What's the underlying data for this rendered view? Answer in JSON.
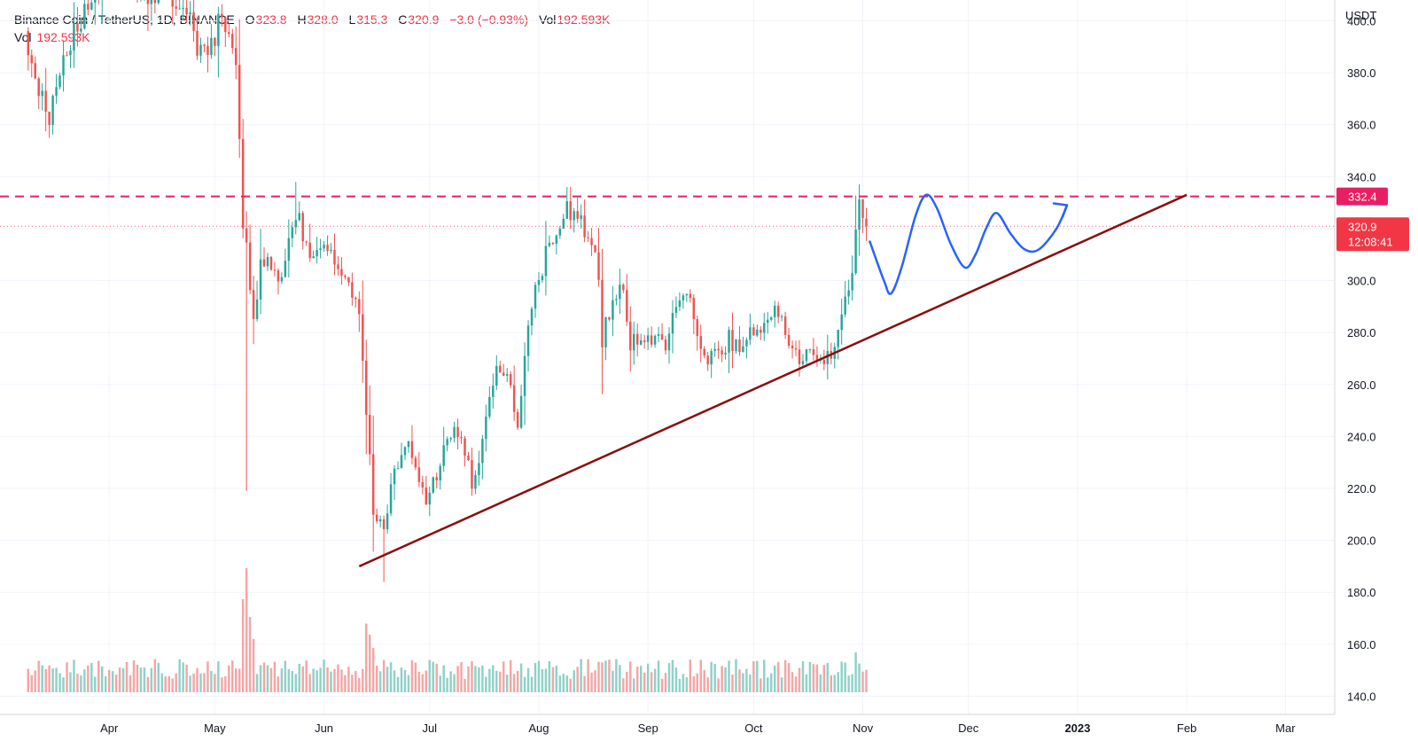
{
  "header": {
    "symbol": "Binance Coin / TetherUS, 1D, BINANCE",
    "o_label": "O",
    "o_value": "323.8",
    "h_label": "H",
    "h_value": "328.0",
    "l_label": "L",
    "l_value": "315.3",
    "c_label": "C",
    "c_value": "320.9",
    "change": "−3.0 (−0.93%)",
    "vol_label": "Vol",
    "vol_value": "192.593K",
    "vol_row_label": "Vol",
    "vol_row_value": "192.593K"
  },
  "colors": {
    "up": "#26a69a",
    "down": "#ef5350",
    "vol_up": "#8fd1c8",
    "vol_down": "#f5a5a5",
    "resistance": "#e91e63",
    "trendline": "#880e0e",
    "projection": "#2962ff",
    "last_price": "#f23645",
    "grid": "#f0f3fa",
    "axis_text": "#131722"
  },
  "chart_data": {
    "type": "candlestick",
    "symbol": "BNBUSDT",
    "y_axis": {
      "currency": "USDT",
      "ylim": [
        133,
        408
      ],
      "ticks": [
        140.0,
        160.0,
        180.0,
        200.0,
        220.0,
        240.0,
        260.0,
        280.0,
        300.0,
        320.0,
        340.0,
        360.0,
        380.0,
        400.0
      ],
      "tick_labels": [
        "140.0",
        "160.0",
        "180.0",
        "200.0",
        "220.0",
        "240.0",
        "260.0",
        "280.0",
        "300.0",
        "320.0",
        "340.0",
        "360.0",
        "380.0",
        "400.0"
      ]
    },
    "x_axis": {
      "start": "2022-03-01",
      "end": "2023-03-15",
      "ticks": [
        {
          "date": "2022-04-01",
          "label": "Apr",
          "bold": false
        },
        {
          "date": "2022-05-01",
          "label": "May",
          "bold": false
        },
        {
          "date": "2022-06-01",
          "label": "Jun",
          "bold": false
        },
        {
          "date": "2022-07-01",
          "label": "Jul",
          "bold": false
        },
        {
          "date": "2022-08-01",
          "label": "Aug",
          "bold": false
        },
        {
          "date": "2022-09-01",
          "label": "Sep",
          "bold": false
        },
        {
          "date": "2022-10-01",
          "label": "Oct",
          "bold": false
        },
        {
          "date": "2022-11-01",
          "label": "Nov",
          "bold": false
        },
        {
          "date": "2022-12-01",
          "label": "Dec",
          "bold": false
        },
        {
          "date": "2023-01-01",
          "label": "2023",
          "bold": true
        },
        {
          "date": "2023-02-01",
          "label": "Feb",
          "bold": false
        },
        {
          "date": "2023-03-01",
          "label": "Mar",
          "bold": false
        }
      ]
    },
    "candles_start": "2022-03-09",
    "anchors": [
      [
        "2022-03-09",
        392
      ],
      [
        "2022-03-12",
        372
      ],
      [
        "2022-03-15",
        362
      ],
      [
        "2022-03-18",
        378
      ],
      [
        "2022-03-22",
        395
      ],
      [
        "2022-03-25",
        404
      ],
      [
        "2022-03-28",
        412
      ],
      [
        "2022-04-02",
        428
      ],
      [
        "2022-04-06",
        422
      ],
      [
        "2022-04-10",
        410
      ],
      [
        "2022-04-14",
        412
      ],
      [
        "2022-04-18",
        410
      ],
      [
        "2022-04-22",
        404
      ],
      [
        "2022-04-26",
        392
      ],
      [
        "2022-04-29",
        384
      ],
      [
        "2022-05-02",
        398
      ],
      [
        "2022-05-05",
        400
      ],
      [
        "2022-05-07",
        382
      ],
      [
        "2022-05-09",
        318
      ],
      [
        "2022-05-10",
        318
      ],
      [
        "2022-05-11",
        295
      ],
      [
        "2022-05-12",
        286
      ],
      [
        "2022-05-14",
        305
      ],
      [
        "2022-05-17",
        308
      ],
      [
        "2022-05-20",
        298
      ],
      [
        "2022-05-24",
        326
      ],
      [
        "2022-05-26",
        318
      ],
      [
        "2022-05-28",
        306
      ],
      [
        "2022-06-01",
        318
      ],
      [
        "2022-06-04",
        304
      ],
      [
        "2022-06-08",
        298
      ],
      [
        "2022-06-11",
        286
      ],
      [
        "2022-06-13",
        250
      ],
      [
        "2022-06-15",
        212
      ],
      [
        "2022-06-18",
        204
      ],
      [
        "2022-06-20",
        222
      ],
      [
        "2022-06-24",
        238
      ],
      [
        "2022-06-27",
        230
      ],
      [
        "2022-06-30",
        215
      ],
      [
        "2022-07-03",
        225
      ],
      [
        "2022-07-07",
        242
      ],
      [
        "2022-07-10",
        240
      ],
      [
        "2022-07-13",
        222
      ],
      [
        "2022-07-16",
        238
      ],
      [
        "2022-07-20",
        268
      ],
      [
        "2022-07-23",
        264
      ],
      [
        "2022-07-26",
        246
      ],
      [
        "2022-07-29",
        284
      ],
      [
        "2022-08-03",
        310
      ],
      [
        "2022-08-06",
        320
      ],
      [
        "2022-08-09",
        326
      ],
      [
        "2022-08-12",
        322
      ],
      [
        "2022-08-15",
        318
      ],
      [
        "2022-08-18",
        304
      ],
      [
        "2022-08-19",
        278
      ],
      [
        "2022-08-22",
        294
      ],
      [
        "2022-08-25",
        298
      ],
      [
        "2022-08-27",
        276
      ],
      [
        "2022-08-31",
        276
      ],
      [
        "2022-09-04",
        278
      ],
      [
        "2022-09-06",
        272
      ],
      [
        "2022-09-09",
        290
      ],
      [
        "2022-09-12",
        296
      ],
      [
        "2022-09-15",
        282
      ],
      [
        "2022-09-18",
        268
      ],
      [
        "2022-09-21",
        272
      ],
      [
        "2022-09-24",
        278
      ],
      [
        "2022-09-27",
        272
      ],
      [
        "2022-09-30",
        282
      ],
      [
        "2022-10-04",
        284
      ],
      [
        "2022-10-07",
        290
      ],
      [
        "2022-10-10",
        282
      ],
      [
        "2022-10-13",
        270
      ],
      [
        "2022-10-16",
        272
      ],
      [
        "2022-10-19",
        272
      ],
      [
        "2022-10-22",
        270
      ],
      [
        "2022-10-25",
        278
      ],
      [
        "2022-10-27",
        292
      ],
      [
        "2022-10-29",
        306
      ],
      [
        "2022-10-30",
        320
      ],
      [
        "2022-10-31",
        328
      ],
      [
        "2022-11-01",
        322
      ],
      [
        "2022-11-02",
        320.9
      ]
    ],
    "last_candle": {
      "date": "2022-11-02",
      "open": 323.8,
      "high": 328.0,
      "low": 315.3,
      "close": 320.9,
      "volume": "192.593K"
    },
    "volume_spikes": [
      [
        "2022-05-09",
        4.2
      ],
      [
        "2022-05-10",
        5.6
      ],
      [
        "2022-05-11",
        3.4
      ],
      [
        "2022-05-12",
        2.4
      ],
      [
        "2022-06-13",
        3.1
      ],
      [
        "2022-06-14",
        2.6
      ],
      [
        "2022-06-15",
        2.0
      ],
      [
        "2022-08-04",
        1.4
      ],
      [
        "2022-10-30",
        1.8
      ],
      [
        "2022-10-31",
        1.3
      ]
    ],
    "resistance_level": {
      "value": 332.4,
      "label": "332.4",
      "style": "dashed"
    },
    "last_price": {
      "value": 320.9,
      "label": "320.9",
      "countdown": "12:08:41"
    },
    "trendline": {
      "from": {
        "date": "2022-06-11",
        "value": 190
      },
      "to": {
        "date": "2023-02-01",
        "value": 333
      }
    },
    "projection_path": [
      [
        "2022-11-03",
        315
      ],
      [
        "2022-11-07",
        300
      ],
      [
        "2022-11-09",
        295
      ],
      [
        "2022-11-12",
        305
      ],
      [
        "2022-11-16",
        325
      ],
      [
        "2022-11-19",
        333
      ],
      [
        "2022-11-22",
        328
      ],
      [
        "2022-11-26",
        314
      ],
      [
        "2022-11-30",
        305
      ],
      [
        "2022-12-03",
        310
      ],
      [
        "2022-12-06",
        320
      ],
      [
        "2022-12-09",
        326
      ],
      [
        "2022-12-13",
        318
      ],
      [
        "2022-12-17",
        312
      ],
      [
        "2022-12-21",
        312
      ],
      [
        "2022-12-26",
        320
      ],
      [
        "2022-12-29",
        329
      ]
    ],
    "legend_placement": "top-left",
    "grid": true
  }
}
